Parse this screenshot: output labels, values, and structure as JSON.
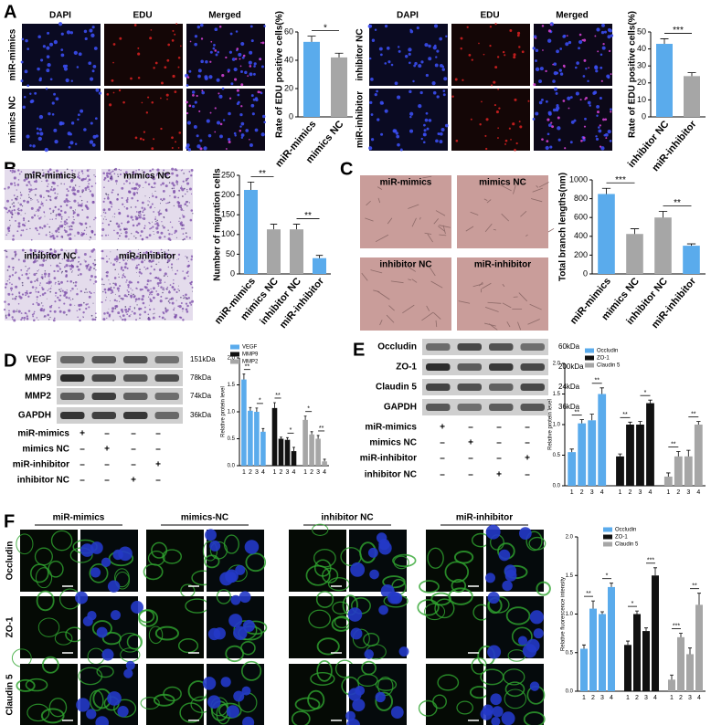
{
  "panel_labels": [
    "A",
    "B",
    "C",
    "D",
    "E",
    "F"
  ],
  "panel_a": {
    "columns": [
      "DAPI",
      "EDU",
      "Merged"
    ],
    "rows_left": [
      "miR-mimics",
      "mimics NC"
    ],
    "rows_right": [
      "inhibitor NC",
      "miR-inhibitor"
    ]
  },
  "panel_b": {
    "images": [
      "miR-mimics",
      "mimics NC",
      "inhibitor NC",
      "miR-inhibitor"
    ]
  },
  "panel_c": {
    "images": [
      "miR-mimics",
      "mimics NC",
      "inhibitor NC",
      "miR-inhibitor"
    ]
  },
  "panel_d": {
    "blots": [
      {
        "name": "VEGF",
        "size": "151kDa"
      },
      {
        "name": "MMP9",
        "size": "78kDa"
      },
      {
        "name": "MMP2",
        "size": "74kDa"
      },
      {
        "name": "GAPDH",
        "size": "36kDa"
      }
    ],
    "treatments": [
      {
        "name": "miR-mimics",
        "marks": [
          "+",
          "–",
          "–",
          "–"
        ]
      },
      {
        "name": "mimics NC",
        "marks": [
          "–",
          "+",
          "–",
          "–"
        ]
      },
      {
        "name": "miR-inhibitor",
        "marks": [
          "–",
          "–",
          "–",
          "+"
        ]
      },
      {
        "name": "inhibitor NC",
        "marks": [
          "–",
          "–",
          "+",
          "–"
        ]
      }
    ]
  },
  "panel_e": {
    "blots": [
      {
        "name": "Occludin",
        "size": "60kDa"
      },
      {
        "name": "ZO-1",
        "size": "200kDa"
      },
      {
        "name": "Claudin 5",
        "size": "24kDa"
      },
      {
        "name": "GAPDH",
        "size": "36kDa"
      }
    ],
    "treatments": [
      {
        "name": "miR-mimics",
        "marks": [
          "+",
          "–",
          "–",
          "–"
        ]
      },
      {
        "name": "mimics NC",
        "marks": [
          "–",
          "+",
          "–",
          "–"
        ]
      },
      {
        "name": "miR-inhibitor",
        "marks": [
          "–",
          "–",
          "–",
          "+"
        ]
      },
      {
        "name": "inhibitor NC",
        "marks": [
          "–",
          "–",
          "+",
          "–"
        ]
      }
    ]
  },
  "panel_f": {
    "groups": [
      "miR-mimics",
      "mimics-NC",
      "inhibitor NC",
      "miR-inhibitor"
    ],
    "rows": [
      "Occludin",
      "ZO-1",
      "Claudin 5"
    ]
  },
  "chart_data": [
    {
      "type": "bar",
      "ylabel": "Rate of EDU positive cells(%)",
      "categories": [
        "miR-mimics",
        "mimics NC"
      ],
      "values": [
        53,
        42
      ],
      "errors": [
        4,
        3
      ],
      "colors": [
        "#5aabec",
        "#a6a6a6"
      ],
      "ylim": [
        0,
        60
      ],
      "yticks": [
        0,
        20,
        40,
        60
      ],
      "significance": [
        "*"
      ]
    },
    {
      "type": "bar",
      "ylabel": "Rate of EDU positive cells(%)",
      "categories": [
        "inhibitor NC",
        "miR-inhibitor"
      ],
      "values": [
        43,
        24
      ],
      "errors": [
        3,
        2
      ],
      "colors": [
        "#5aabec",
        "#a6a6a6"
      ],
      "ylim": [
        0,
        50
      ],
      "yticks": [
        0,
        10,
        20,
        30,
        40,
        50
      ],
      "significance": [
        "***"
      ]
    },
    {
      "type": "bar",
      "ylabel": "Number of migration cells",
      "categories": [
        "miR-mimics",
        "mimics NC",
        "inhibitor NC",
        "miR-inhibitor"
      ],
      "values": [
        213,
        113,
        113,
        40
      ],
      "errors": [
        20,
        13,
        13,
        7
      ],
      "colors": [
        "#5aabec",
        "#a6a6a6",
        "#a6a6a6",
        "#5aabec"
      ],
      "ylim": [
        0,
        250
      ],
      "yticks": [
        0,
        50,
        100,
        150,
        200,
        250
      ],
      "significance": [
        "**",
        "**"
      ]
    },
    {
      "type": "bar",
      "ylabel": "Total branch lengths(nm)",
      "categories": [
        "miR-mimics",
        "mimics NC",
        "inhibitor NC",
        "miR-inhibitor"
      ],
      "values": [
        850,
        425,
        600,
        300
      ],
      "errors": [
        60,
        55,
        65,
        20
      ],
      "colors": [
        "#5aabec",
        "#a6a6a6",
        "#a6a6a6",
        "#5aabec"
      ],
      "ylim": [
        0,
        1000
      ],
      "yticks": [
        0,
        200,
        400,
        600,
        800,
        1000
      ],
      "significance": [
        "***",
        "**"
      ]
    },
    {
      "type": "grouped_bar",
      "ylabel": "Relative protein level",
      "categories": [
        "1",
        "2",
        "3",
        "4"
      ],
      "series": [
        {
          "name": "VEGF",
          "color": "#5aabec",
          "values": [
            1.6,
            1.02,
            1.0,
            0.63
          ],
          "errors": [
            0.1,
            0.06,
            0.07,
            0.06
          ],
          "significance": [
            "**",
            "*"
          ]
        },
        {
          "name": "MMP9",
          "color": "#111111",
          "values": [
            1.07,
            0.5,
            0.48,
            0.27
          ],
          "errors": [
            0.1,
            0.03,
            0.04,
            0.07
          ],
          "significance": [
            "**",
            "*"
          ]
        },
        {
          "name": "MMP2",
          "color": "#a6a6a6",
          "values": [
            0.85,
            0.58,
            0.5,
            0.08
          ],
          "errors": [
            0.07,
            0.05,
            0.06,
            0.04
          ],
          "significance": [
            "*",
            "**"
          ]
        }
      ],
      "ylim": [
        0,
        2
      ],
      "yticks": [
        {
          "value": 0,
          "label": "0.0"
        },
        0.5,
        {
          "value": 1,
          "label": "1.0"
        },
        1.5,
        {
          "value": 2,
          "label": "2.0"
        }
      ]
    },
    {
      "type": "grouped_bar",
      "ylabel": "Relative protein level",
      "categories": [
        "1",
        "2",
        "3",
        "4"
      ],
      "series": [
        {
          "name": "Occludin",
          "color": "#5aabec",
          "values": [
            0.55,
            1.02,
            1.07,
            1.5
          ],
          "errors": [
            0.05,
            0.06,
            0.1,
            0.1
          ],
          "significance": [
            "**",
            "**"
          ]
        },
        {
          "name": "ZO-1",
          "color": "#111111",
          "values": [
            0.48,
            1.0,
            1.0,
            1.35
          ],
          "errors": [
            0.04,
            0.04,
            0.05,
            0.05
          ],
          "significance": [
            "**",
            "*"
          ]
        },
        {
          "name": "Claudin 5",
          "color": "#a6a6a6",
          "values": [
            0.15,
            0.48,
            0.48,
            1.0
          ],
          "errors": [
            0.06,
            0.08,
            0.1,
            0.05
          ],
          "significance": [
            "**",
            "**"
          ]
        }
      ],
      "ylim": [
        0,
        2
      ],
      "yticks": [
        {
          "value": 0,
          "label": "0.0"
        },
        0.5,
        {
          "value": 1,
          "label": "1.0"
        },
        1.5,
        {
          "value": 2,
          "label": "2.0"
        }
      ]
    },
    {
      "type": "grouped_bar",
      "ylabel": "Relative fluorescence intensity",
      "categories": [
        "1",
        "2",
        "3",
        "4"
      ],
      "series": [
        {
          "name": "Occludin",
          "color": "#5aabec",
          "values": [
            0.55,
            1.07,
            1.0,
            1.35
          ],
          "errors": [
            0.05,
            0.1,
            0.03,
            0.05
          ],
          "significance": [
            "**",
            "*"
          ]
        },
        {
          "name": "ZO-1",
          "color": "#111111",
          "values": [
            0.6,
            1.0,
            0.78,
            1.5
          ],
          "errors": [
            0.05,
            0.04,
            0.04,
            0.1
          ],
          "significance": [
            "*",
            "***"
          ]
        },
        {
          "name": "Claudin 5",
          "color": "#a6a6a6",
          "values": [
            0.15,
            0.7,
            0.48,
            1.12
          ],
          "errors": [
            0.06,
            0.05,
            0.08,
            0.15
          ],
          "significance": [
            "***",
            "**"
          ]
        }
      ],
      "ylim": [
        0,
        2
      ],
      "yticks": [
        {
          "value": 0,
          "label": "0.0"
        },
        0.5,
        {
          "value": 1,
          "label": "1.0"
        },
        1.5,
        {
          "value": 2,
          "label": "2.0"
        }
      ]
    }
  ]
}
